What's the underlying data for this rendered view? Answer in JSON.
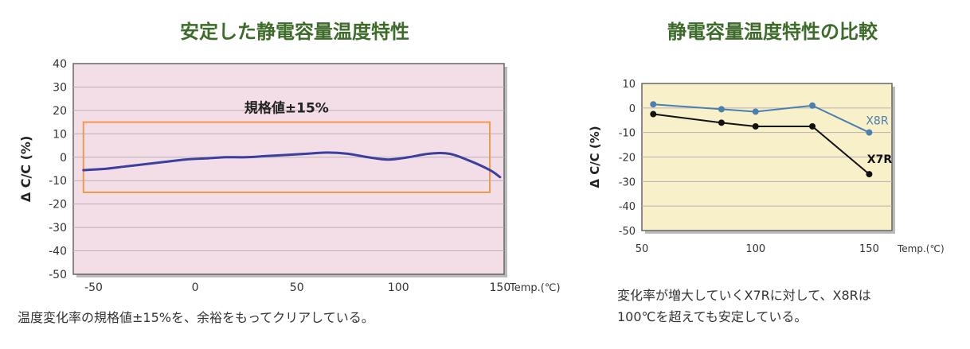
{
  "left": {
    "title": "安定した静電容量温度特性",
    "caption": "温度変化率の規格値±15%を、余裕をもってクリアしている。",
    "chart_data": {
      "type": "line",
      "title": "安定した静電容量温度特性",
      "xlabel": "Temp.(℃)",
      "ylabel": "Δ C/C (%)",
      "xlim": [
        -60,
        152
      ],
      "ylim": [
        -50,
        40
      ],
      "xticks": [
        -50,
        0,
        50,
        100,
        150
      ],
      "yticks": [
        40,
        30,
        20,
        10,
        0,
        -10,
        -20,
        -30,
        -40,
        -50
      ],
      "series": [
        {
          "color": "#3b3f9e",
          "x": [
            -55,
            -45,
            -35,
            -25,
            -15,
            -5,
            5,
            15,
            25,
            35,
            45,
            55,
            65,
            75,
            85,
            95,
            105,
            115,
            125,
            135,
            145,
            150
          ],
          "y": [
            -5.5,
            -5,
            -4,
            -3,
            -2,
            -1,
            -0.5,
            0,
            0,
            0.5,
            1,
            1.5,
            2,
            1.5,
            0,
            -1,
            0,
            1.5,
            1.5,
            -1.5,
            -5.5,
            -8.5
          ]
        }
      ],
      "band": {
        "label": "規格値±15%",
        "xrange": [
          -55,
          155
        ],
        "yrange": [
          -15,
          15
        ],
        "color": "#f29a4a"
      },
      "grid": true,
      "background": "#f3dde6"
    }
  },
  "right": {
    "title": "静電容量温度特性の比較",
    "caption_line1": "変化率が増大していくX7Rに対して、X8Rは",
    "caption_line2": "100℃を超えても安定している。",
    "chart_data": {
      "type": "line",
      "title": "静電容量温度特性の比較",
      "xlabel": "Temp.(℃)",
      "ylabel": "Δ C/C (%)",
      "xlim": [
        50,
        160
      ],
      "ylim": [
        -50,
        10
      ],
      "xticks": [
        50,
        100,
        150
      ],
      "yticks": [
        10,
        0,
        -10,
        -20,
        -30,
        -40,
        -50
      ],
      "series": [
        {
          "name": "X8R",
          "color": "#4a7fb0",
          "x": [
            55,
            85,
            100,
            125,
            150
          ],
          "y": [
            1.5,
            -0.5,
            -1.5,
            1,
            -10
          ]
        },
        {
          "name": "X7R",
          "color": "#111111",
          "x": [
            55,
            85,
            100,
            125,
            150
          ],
          "y": [
            -2.5,
            -6,
            -7.5,
            -7.5,
            -27
          ]
        }
      ],
      "grid": true,
      "background": "#f8f0c9"
    }
  }
}
